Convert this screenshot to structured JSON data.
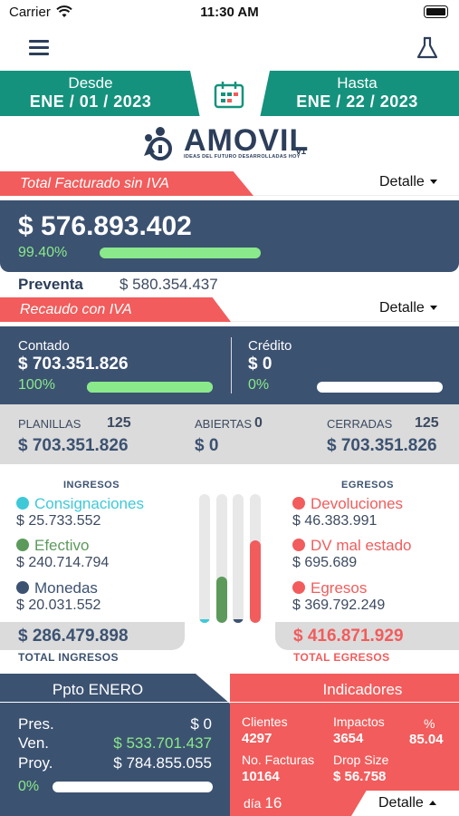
{
  "status_bar": {
    "carrier": "Carrier",
    "time": "11:30 AM"
  },
  "date_range": {
    "from_label": "Desde",
    "from_value": "ENE / 01 / 2023",
    "to_label": "Hasta",
    "to_value": "ENE / 22 / 2023"
  },
  "logo": {
    "brand": "AMOVIL",
    "tagline": "IDEAS DEL FUTURO DESARROLLADAS HOY",
    "version": "v1"
  },
  "facturado": {
    "title": "Total Facturado sin IVA",
    "detail_label": "Detalle",
    "amount": "$ 576.893.402",
    "percent_label": "99.40%",
    "progress": 0.994,
    "preventa_label": "Preventa",
    "preventa_value": "$ 580.354.437"
  },
  "recaudo": {
    "title": "Recaudo con IVA",
    "detail_label": "Detalle",
    "contado_label": "Contado",
    "contado_value": "$ 703.351.826",
    "contado_pct": "100%",
    "contado_progress": 1.0,
    "credito_label": "Crédito",
    "credito_value": "$ 0",
    "credito_pct": "0%",
    "credito_progress": 0.0
  },
  "planillas": {
    "planillas_label": "PLANILLAS",
    "planillas_count": "125",
    "planillas_value": "$ 703.351.826",
    "abiertas_label": "ABIERTAS",
    "abiertas_count": "0",
    "abiertas_value": "$ 0",
    "cerradas_label": "CERRADAS",
    "cerradas_count": "125",
    "cerradas_value": "$ 703.351.826"
  },
  "ingresos": {
    "header": "INGRESOS",
    "items": [
      {
        "label": "Consignaciones",
        "value": "$ 25.733.552",
        "color": "#3fc9d8"
      },
      {
        "label": "Efectivo",
        "value": "$ 240.714.794",
        "color": "#5c9a5c"
      },
      {
        "label": "Monedas",
        "value": "$ 20.031.552",
        "color": "#3c5271"
      }
    ],
    "total": "$ 286.479.898",
    "total_label": "TOTAL INGRESOS"
  },
  "egresos": {
    "header": "EGRESOS",
    "items": [
      {
        "label": "Devoluciones",
        "value": "$ 46.383.991",
        "color": "#f25c5c"
      },
      {
        "label": "DV mal estado",
        "value": "$ 695.689",
        "color": "#f25c5c"
      },
      {
        "label": "Egresos",
        "value": "$ 369.792.249",
        "color": "#f25c5c"
      }
    ],
    "total": "$ 416.871.929",
    "total_label": "TOTAL EGRESOS"
  },
  "column_bars": [
    {
      "fraction": 0.03,
      "color": "#3fc9d8"
    },
    {
      "fraction": 0.36,
      "color": "#5c9a5c"
    },
    {
      "fraction": 0.02,
      "color": "#3c5271"
    },
    {
      "fraction": 0.64,
      "color": "#f25c5c"
    }
  ],
  "presupuesto": {
    "title": "Ppto ENERO",
    "pres_label": "Pres.",
    "pres_value": "$ 0",
    "ven_label": "Ven.",
    "ven_value": "$ 533.701.437",
    "proy_label": "Proy.",
    "proy_value": "$ 784.855.055",
    "pct": "0%",
    "progress": 0.0
  },
  "indicadores": {
    "title": "Indicadores",
    "clientes_label": "Clientes",
    "clientes_value": "4297",
    "impactos_label": "Impactos",
    "impactos_value": "3654",
    "pct_label": "%",
    "pct_value": "85.04",
    "facturas_label": "No. Facturas",
    "facturas_value": "10164",
    "drop_label": "Drop Size",
    "drop_value": "$ 56.758",
    "dia_label": "día",
    "dia_value": "16",
    "detail_label": "Detalle"
  }
}
